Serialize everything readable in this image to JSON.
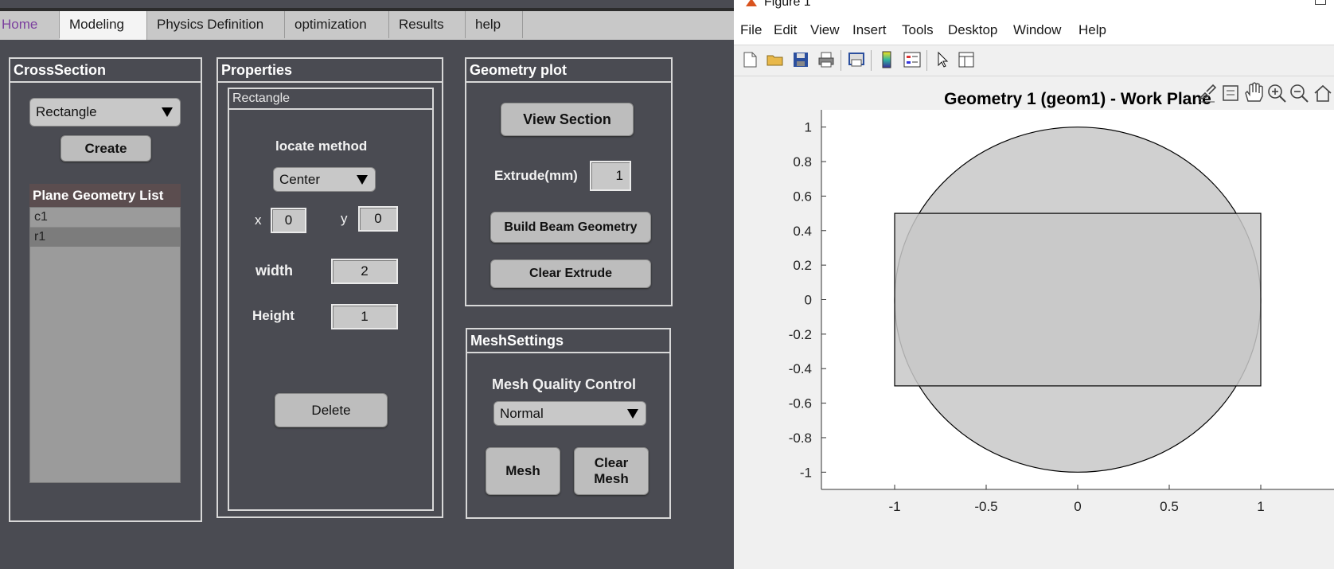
{
  "app": {
    "tabs": [
      {
        "label": "Home"
      },
      {
        "label": "Modeling"
      },
      {
        "label": "Physics Definition"
      },
      {
        "label": "optimization"
      },
      {
        "label": "Results"
      },
      {
        "label": "help"
      }
    ],
    "cross_section": {
      "title": "CrossSection",
      "shape_selected": "Rectangle",
      "create_label": "Create",
      "list_title": "Plane Geometry List",
      "list_items": [
        "c1",
        "r1"
      ]
    },
    "properties": {
      "title": "Properties",
      "sub_title": "Rectangle",
      "locate_label": "locate method",
      "locate_selected": "Center",
      "x_label": "x",
      "x_value": "0",
      "y_label": "y",
      "y_value": "0",
      "width_label": "width",
      "width_value": "2",
      "height_label": "Height",
      "height_value": "1",
      "delete_label": "Delete"
    },
    "geometry_plot": {
      "title": "Geometry plot",
      "view_section_label": "View Section",
      "extrude_label": "Extrude(mm)",
      "extrude_value": "1",
      "build_label": "Build Beam Geometry",
      "clear_extrude_label": "Clear Extrude"
    },
    "mesh": {
      "title": "MeshSettings",
      "quality_label": "Mesh Quality Control",
      "quality_selected": "Normal",
      "mesh_label": "Mesh",
      "clear_mesh_line1": "Clear",
      "clear_mesh_line2": "Mesh"
    }
  },
  "figure": {
    "window_title": "Figure 1",
    "menu": [
      "File",
      "Edit",
      "View",
      "Insert",
      "Tools",
      "Desktop",
      "Window",
      "Help"
    ],
    "toolbar_icons": [
      "new-file-icon",
      "open-folder-icon",
      "save-icon",
      "print-icon",
      "print-preview-icon",
      "colorbar-icon",
      "legend-icon",
      "pointer-icon",
      "property-inspector-icon"
    ],
    "axes_toolbar_icons": [
      "brush-icon",
      "data-tips-icon",
      "pan-hand-icon",
      "zoom-in-icon",
      "zoom-out-icon",
      "home-icon"
    ]
  },
  "chart_data": {
    "type": "geometry",
    "title": "Geometry 1 (geom1) - Work Plane",
    "xlim": [
      -1.4,
      1.4
    ],
    "ylim": [
      -1.1,
      1.1
    ],
    "x_ticks": [
      "-1",
      "-0.5",
      "0",
      "0.5",
      "1"
    ],
    "x_tick_values": [
      -1,
      -0.5,
      0,
      0.5,
      1
    ],
    "y_ticks": [
      "1",
      "0.8",
      "0.6",
      "0.4",
      "0.2",
      "0",
      "-0.2",
      "-0.4",
      "-0.6",
      "-0.8",
      "-1"
    ],
    "y_tick_values": [
      1,
      0.8,
      0.6,
      0.4,
      0.2,
      0,
      -0.2,
      -0.4,
      -0.6,
      -0.8,
      -1
    ],
    "shapes": [
      {
        "name": "c1",
        "kind": "circle",
        "cx": 0,
        "cy": 0,
        "r": 1
      },
      {
        "name": "r1",
        "kind": "rectangle",
        "x": -1,
        "y": -0.5,
        "width": 2,
        "height": 1
      }
    ],
    "fill_color": "#c8c8c8",
    "edge_color": "#000000"
  }
}
